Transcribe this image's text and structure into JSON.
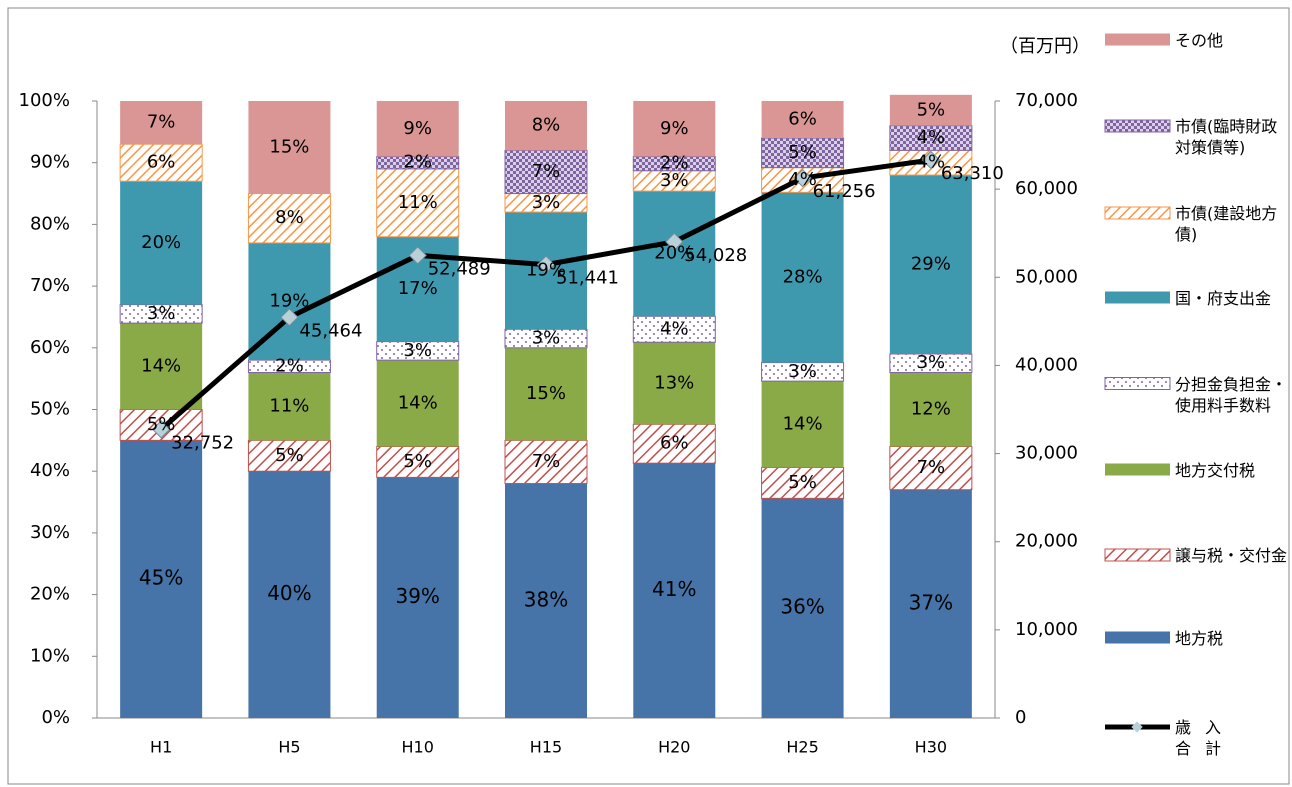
{
  "chart_data": {
    "type": "bar",
    "stacked": true,
    "categories": [
      "H1",
      "H5",
      "H10",
      "H15",
      "H20",
      "H25",
      "H30"
    ],
    "ylim": [
      0,
      100
    ],
    "yticks": [
      {
        "value": 0,
        "label": "0%"
      },
      {
        "value": 10,
        "label": "10%"
      },
      {
        "value": 20,
        "label": "20%"
      },
      {
        "value": 30,
        "label": "30%"
      },
      {
        "value": 40,
        "label": "40%"
      },
      {
        "value": 50,
        "label": "50%"
      },
      {
        "value": 60,
        "label": "60%"
      },
      {
        "value": 70,
        "label": "70%"
      },
      {
        "value": 80,
        "label": "80%"
      },
      {
        "value": 90,
        "label": "90%"
      },
      {
        "value": 100,
        "label": "100%"
      }
    ],
    "y2label": "（百万円）",
    "y2lim": [
      0,
      70000
    ],
    "y2ticks": [
      0,
      {
        "value": 10000,
        "label": "10,000"
      },
      {
        "value": 20000,
        "label": "20,000"
      },
      {
        "value": 30000,
        "label": "30,000"
      },
      {
        "value": 40000,
        "label": "40,000"
      },
      {
        "value": 50000,
        "label": "50,000"
      },
      {
        "value": 60000,
        "label": "60,000"
      },
      {
        "value": 70000,
        "label": "70,000"
      }
    ],
    "series": [
      {
        "name": "地方税",
        "color": "#4673a8",
        "values": [
          45,
          40,
          39,
          38,
          41.3,
          35.6,
          37
        ],
        "value_labels": [
          "45%",
          "40%",
          "39%",
          "38%",
          "41%",
          "36%",
          "37%"
        ]
      },
      {
        "name": "譲与税・交付金",
        "color": "#c0504d",
        "values": [
          5,
          5,
          5,
          7,
          6.3,
          5,
          7
        ],
        "value_labels": [
          "5%",
          "5%",
          "5%",
          "7%",
          "6%",
          "5%",
          "7%"
        ]
      },
      {
        "name": "地方交付税",
        "color": "#8aaa48",
        "values": [
          14,
          11,
          14,
          15,
          13.3,
          14,
          12
        ],
        "value_labels": [
          "14%",
          "11%",
          "14%",
          "15%",
          "13%",
          "14%",
          "12%"
        ]
      },
      {
        "name": "分担金負担金・使用料手数料",
        "color": "#8064a2",
        "values": [
          3,
          2,
          3,
          3,
          4.2,
          3,
          3
        ],
        "value_labels": [
          "3%",
          "2%",
          "3%",
          "3%",
          "4%",
          "3%",
          "3%"
        ]
      },
      {
        "name": "国・府支出金",
        "color": "#3f99ae",
        "values": [
          20,
          19,
          17,
          19,
          20.3,
          27.6,
          29
        ],
        "value_labels": [
          "20%",
          "19%",
          "17%",
          "19%",
          "20%",
          "28%",
          "29%"
        ]
      },
      {
        "name": "市債(建設地方債)",
        "color": "#f79646",
        "values": [
          6,
          8,
          11,
          3,
          3.3,
          4,
          4
        ],
        "value_labels": [
          "6%",
          "8%",
          "11%",
          "3%",
          "3%",
          "4%",
          "4%"
        ]
      },
      {
        "name": "市債(臨時財政対策債等)",
        "color": "#8064a2",
        "values": [
          null,
          null,
          2,
          7,
          2.3,
          4.8,
          4
        ],
        "value_labels": [
          null,
          null,
          "2%",
          "7%",
          "2%",
          "5%",
          "4%"
        ]
      },
      {
        "name": "その他",
        "color": "#d99694",
        "values": [
          7,
          15,
          9,
          8,
          9,
          6,
          5
        ],
        "value_labels": [
          "7%",
          "15%",
          "9%",
          "8%",
          "9%",
          "6%",
          "5%"
        ]
      },
      {
        "name": "歳入合計",
        "type": "line",
        "axis": "y2",
        "color": "#000000",
        "values": [
          32752,
          45464,
          52489,
          51441,
          54028,
          61256,
          63310
        ],
        "value_labels": [
          "32,752",
          "45,464",
          "52,489",
          "51,441",
          "54,028",
          "61,256",
          "63,310"
        ]
      }
    ]
  }
}
